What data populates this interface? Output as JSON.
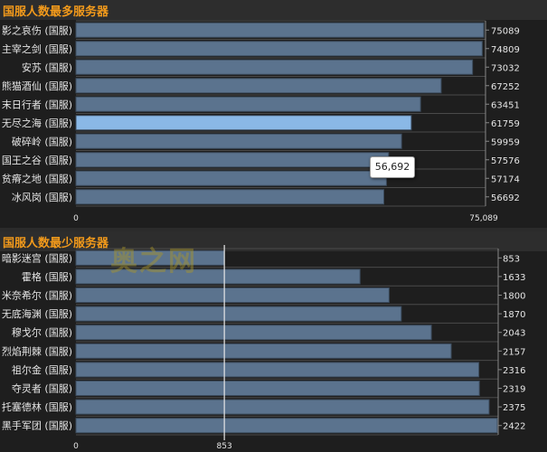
{
  "chart_data": [
    {
      "type": "bar",
      "orientation": "horizontal",
      "title": "国服人数最多服务器",
      "categories": [
        "影之哀伤 (国服)",
        "主宰之剑 (国服)",
        "安苏 (国服)",
        "熊猫酒仙 (国服)",
        "末日行者 (国服)",
        "无尽之海 (国服)",
        "破碎岭 (国服)",
        "国王之谷 (国服)",
        "贫瘠之地 (国服)",
        "冰风岗 (国服)"
      ],
      "values": [
        75089,
        74809,
        73032,
        67252,
        63451,
        61759,
        59959,
        57576,
        57174,
        56692
      ],
      "value_labels": [
        "75089",
        "74809",
        "73032",
        "67252",
        "63451",
        "61759",
        "59959",
        "57576",
        "57174",
        "56692"
      ],
      "x_ticks": [
        "0",
        "75,089"
      ],
      "xlim": [
        0,
        75089
      ],
      "highlighted_index": 5,
      "tooltip": "56,692"
    },
    {
      "type": "bar",
      "orientation": "horizontal",
      "title": "国服人数最少服务器",
      "categories": [
        "暗影迷宫 (国服)",
        "霍格 (国服)",
        "米奈希尔 (国服)",
        "无底海渊 (国服)",
        "穆戈尔 (国服)",
        "烈焰荆棘 (国服)",
        "祖尔金 (国服)",
        "夺灵者 (国服)",
        "托塞德林 (国服)",
        "黑手军团 (国服)"
      ],
      "values": [
        853,
        1633,
        1800,
        1870,
        2043,
        2157,
        2316,
        2319,
        2375,
        2422
      ],
      "value_labels": [
        "853",
        "1633",
        "1800",
        "1870",
        "2043",
        "2157",
        "2316",
        "2319",
        "2375",
        "2422"
      ],
      "x_ticks": [
        "0",
        "853"
      ],
      "reference_line": 853,
      "xlim": [
        0,
        2422
      ]
    }
  ],
  "watermark": "奥之网",
  "colors": {
    "bar": "#5b738e",
    "bar_highlight": "#8ab8e6",
    "title": "#f39a1b",
    "text": "#e6e6e6",
    "grid": "#4a4a4a"
  }
}
